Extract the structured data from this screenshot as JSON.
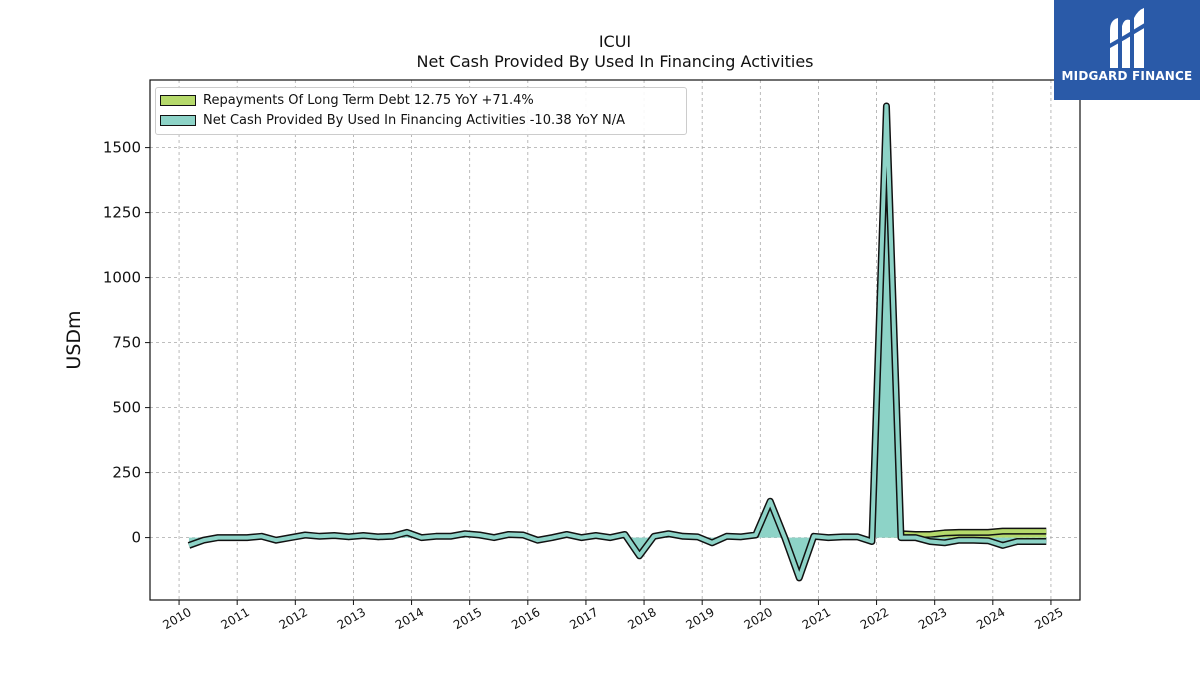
{
  "chart_data": {
    "type": "area",
    "title": "ICUI",
    "subtitle": "Net Cash Provided By Used In Financing Activities",
    "ylabel": "USDm",
    "xlabel": "",
    "xlim": [
      2009.5,
      2025.5
    ],
    "ylim": [
      -240,
      1760
    ],
    "x_ticks": [
      "2010",
      "2011",
      "2012",
      "2013",
      "2014",
      "2015",
      "2016",
      "2017",
      "2018",
      "2019",
      "2020",
      "2021",
      "2022",
      "2023",
      "2024",
      "2025"
    ],
    "y_ticks": [
      "0",
      "250",
      "500",
      "750",
      "1000",
      "1250",
      "1500"
    ],
    "grid": true,
    "legend_position": "top-left",
    "series": [
      {
        "name": "Repayments Of Long Term Debt",
        "legend_label": "Repayments Of Long Term Debt  12.75 YoY +71.4%",
        "color": "#b5d96b",
        "x": [
          2022.17,
          2022.42,
          2022.67,
          2022.92,
          2023.17,
          2023.42,
          2023.67,
          2023.92,
          2024.17,
          2024.42,
          2024.67,
          2024.92
        ],
        "values": [
          30,
          15,
          12,
          12,
          18,
          20,
          20,
          20,
          25,
          25,
          25,
          25
        ]
      },
      {
        "name": "Net Cash Provided By Used In Financing Activities",
        "legend_label": "Net Cash Provided By Used In Financing Activities  -10.38 YoY N/A",
        "color": "#8dd3c7",
        "x": [
          2010.17,
          2010.42,
          2010.67,
          2010.92,
          2011.17,
          2011.42,
          2011.67,
          2011.92,
          2012.17,
          2012.42,
          2012.67,
          2012.92,
          2013.17,
          2013.42,
          2013.67,
          2013.92,
          2014.17,
          2014.42,
          2014.67,
          2014.92,
          2015.17,
          2015.42,
          2015.67,
          2015.92,
          2016.17,
          2016.42,
          2016.67,
          2016.92,
          2017.17,
          2017.42,
          2017.67,
          2017.92,
          2018.17,
          2018.42,
          2018.67,
          2018.92,
          2019.17,
          2019.42,
          2019.67,
          2019.92,
          2020.17,
          2020.42,
          2020.67,
          2020.92,
          2021.17,
          2021.42,
          2021.67,
          2021.92,
          2022.17,
          2022.42,
          2022.67,
          2022.92,
          2023.17,
          2023.42,
          2023.67,
          2023.92,
          2024.17,
          2024.42,
          2024.67,
          2024.92
        ],
        "values": [
          -30,
          -10,
          0,
          0,
          0,
          5,
          -10,
          0,
          10,
          5,
          8,
          3,
          8,
          3,
          5,
          20,
          0,
          5,
          5,
          15,
          10,
          0,
          12,
          10,
          -10,
          0,
          12,
          0,
          8,
          0,
          12,
          -70,
          5,
          15,
          5,
          3,
          -20,
          5,
          3,
          10,
          140,
          0,
          -155,
          5,
          0,
          3,
          3,
          -15,
          1660,
          0,
          0,
          -15,
          -20,
          -10,
          -10,
          -12,
          -30,
          -15,
          -15,
          -15
        ]
      }
    ]
  },
  "logo": {
    "text": "MIDGARD FINANCE"
  }
}
